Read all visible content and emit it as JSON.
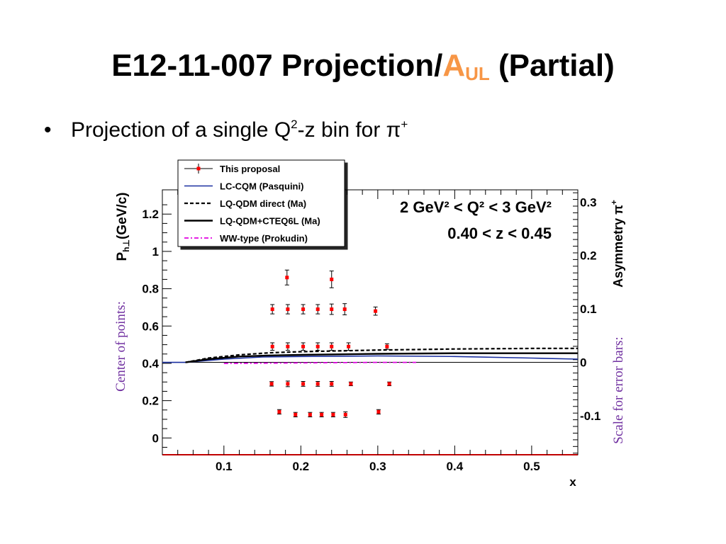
{
  "slide": {
    "title_main": "E12-11-007 Projection/",
    "title_accent": "A",
    "title_accent_sub": "UL",
    "title_end": " (Partial)",
    "bullet_marker": "•",
    "bullet_text_a": "Projection of a single Q",
    "bullet_sup_a": "2",
    "bullet_text_b": "-z bin for π",
    "bullet_sup_b": "+"
  },
  "annotations": {
    "left_note": "Center of points:",
    "right_note": "Scale for error bars:"
  },
  "chart_data": {
    "type": "scatter",
    "xlabel": "x",
    "ylabel": "P_h⊥(GeV/c)",
    "ylabel_main": "P",
    "ylabel_sub": "h⊥",
    "ylabel_rest": "(GeV/c)",
    "y2label": "Asymmetry π",
    "y2label_sup": "+",
    "xlim": [
      0.02,
      0.56
    ],
    "ylim": [
      -0.09,
      1.33
    ],
    "y2lim": [
      -0.173,
      0.323
    ],
    "xticks": [
      0.1,
      0.2,
      0.3,
      0.4,
      0.5
    ],
    "xtick_labels": [
      "0.1",
      "0.2",
      "0.3",
      "0.4",
      "0.5"
    ],
    "yticks": [
      0,
      0.2,
      0.4,
      0.6,
      0.8,
      1,
      1.2
    ],
    "ytick_labels": [
      "0",
      "0.2",
      "0.4",
      "0.6",
      "0.8",
      "1",
      "1.2"
    ],
    "y2ticks": [
      -0.1,
      0,
      0.1,
      0.2,
      0.3
    ],
    "y2tick_labels": [
      "-0.1",
      "0",
      "0.1",
      "0.2",
      "0.3"
    ],
    "bin_label_q2": "2 GeV² < Q² < 3 GeV²",
    "bin_label_z": "0.40 < z < 0.45",
    "legend_position": "top-left, above plot",
    "legend": [
      {
        "name": "This proposal",
        "style": "marker-errorbar",
        "color": "#ff0000"
      },
      {
        "name": "LC-CQM (Pasquini)",
        "style": "solid",
        "color": "#1a2fa0"
      },
      {
        "name": "LQ-QDM direct (Ma)",
        "style": "dashed",
        "color": "#000000"
      },
      {
        "name": "LQ-QDM+CTEQ6L (Ma)",
        "style": "solid-thick",
        "color": "#000000"
      },
      {
        "name": "WW-type (Prokudin)",
        "style": "dash-dot",
        "color": "#e000e0"
      }
    ],
    "points": [
      {
        "x": 0.182,
        "y": 0.86,
        "err": 0.04
      },
      {
        "x": 0.24,
        "y": 0.85,
        "err": 0.045
      },
      {
        "x": 0.163,
        "y": 0.69,
        "err": 0.025
      },
      {
        "x": 0.183,
        "y": 0.69,
        "err": 0.025
      },
      {
        "x": 0.203,
        "y": 0.69,
        "err": 0.025
      },
      {
        "x": 0.222,
        "y": 0.69,
        "err": 0.025
      },
      {
        "x": 0.24,
        "y": 0.69,
        "err": 0.028
      },
      {
        "x": 0.257,
        "y": 0.69,
        "err": 0.03
      },
      {
        "x": 0.297,
        "y": 0.68,
        "err": 0.022
      },
      {
        "x": 0.163,
        "y": 0.49,
        "err": 0.02
      },
      {
        "x": 0.183,
        "y": 0.49,
        "err": 0.02
      },
      {
        "x": 0.203,
        "y": 0.49,
        "err": 0.02
      },
      {
        "x": 0.222,
        "y": 0.49,
        "err": 0.02
      },
      {
        "x": 0.24,
        "y": 0.49,
        "err": 0.02
      },
      {
        "x": 0.262,
        "y": 0.49,
        "err": 0.02
      },
      {
        "x": 0.312,
        "y": 0.49,
        "err": 0.015
      },
      {
        "x": 0.162,
        "y": 0.29,
        "err": 0.012
      },
      {
        "x": 0.183,
        "y": 0.29,
        "err": 0.015
      },
      {
        "x": 0.203,
        "y": 0.29,
        "err": 0.013
      },
      {
        "x": 0.222,
        "y": 0.29,
        "err": 0.013
      },
      {
        "x": 0.24,
        "y": 0.29,
        "err": 0.013
      },
      {
        "x": 0.265,
        "y": 0.29,
        "err": 0.01
      },
      {
        "x": 0.315,
        "y": 0.29,
        "err": 0.01
      },
      {
        "x": 0.172,
        "y": 0.14,
        "err": 0.012
      },
      {
        "x": 0.193,
        "y": 0.125,
        "err": 0.012
      },
      {
        "x": 0.212,
        "y": 0.125,
        "err": 0.012
      },
      {
        "x": 0.227,
        "y": 0.125,
        "err": 0.012
      },
      {
        "x": 0.242,
        "y": 0.125,
        "err": 0.012
      },
      {
        "x": 0.258,
        "y": 0.125,
        "err": 0.015
      },
      {
        "x": 0.301,
        "y": 0.14,
        "err": 0.012
      }
    ],
    "curves": [
      {
        "name": "LC-CQM (Pasquini)",
        "axis": "asymmetry",
        "x": [
          0.02,
          0.05,
          0.1,
          0.15,
          0.2,
          0.3,
          0.4,
          0.5,
          0.56
        ],
        "y": [
          0.0,
          0.0,
          0.006,
          0.01,
          0.011,
          0.012,
          0.011,
          0.008,
          0.006
        ]
      },
      {
        "name": "LQ-QDM direct (Ma)",
        "axis": "asymmetry",
        "x": [
          0.05,
          0.08,
          0.12,
          0.16,
          0.2,
          0.3,
          0.4,
          0.5,
          0.56
        ],
        "y": [
          0.0,
          0.008,
          0.014,
          0.018,
          0.02,
          0.023,
          0.025,
          0.026,
          0.026
        ]
      },
      {
        "name": "LQ-QDM+CTEQ6L (Ma)",
        "axis": "asymmetry",
        "x": [
          0.05,
          0.08,
          0.12,
          0.16,
          0.2,
          0.3,
          0.4,
          0.5,
          0.56
        ],
        "y": [
          0.0,
          0.006,
          0.011,
          0.013,
          0.014,
          0.016,
          0.017,
          0.017,
          0.017
        ]
      },
      {
        "name": "WW-type (Prokudin)",
        "axis": "asymmetry",
        "x": [
          0.1,
          0.15,
          0.2,
          0.25,
          0.3,
          0.35
        ],
        "y": [
          -0.002,
          -0.0015,
          -0.001,
          -0.0005,
          0.0,
          0.0
        ]
      }
    ],
    "colors": {
      "points": "#ff0000",
      "error_bars": "#000000",
      "axis_accent": "#c00000",
      "annotation": "#7030a0"
    }
  }
}
